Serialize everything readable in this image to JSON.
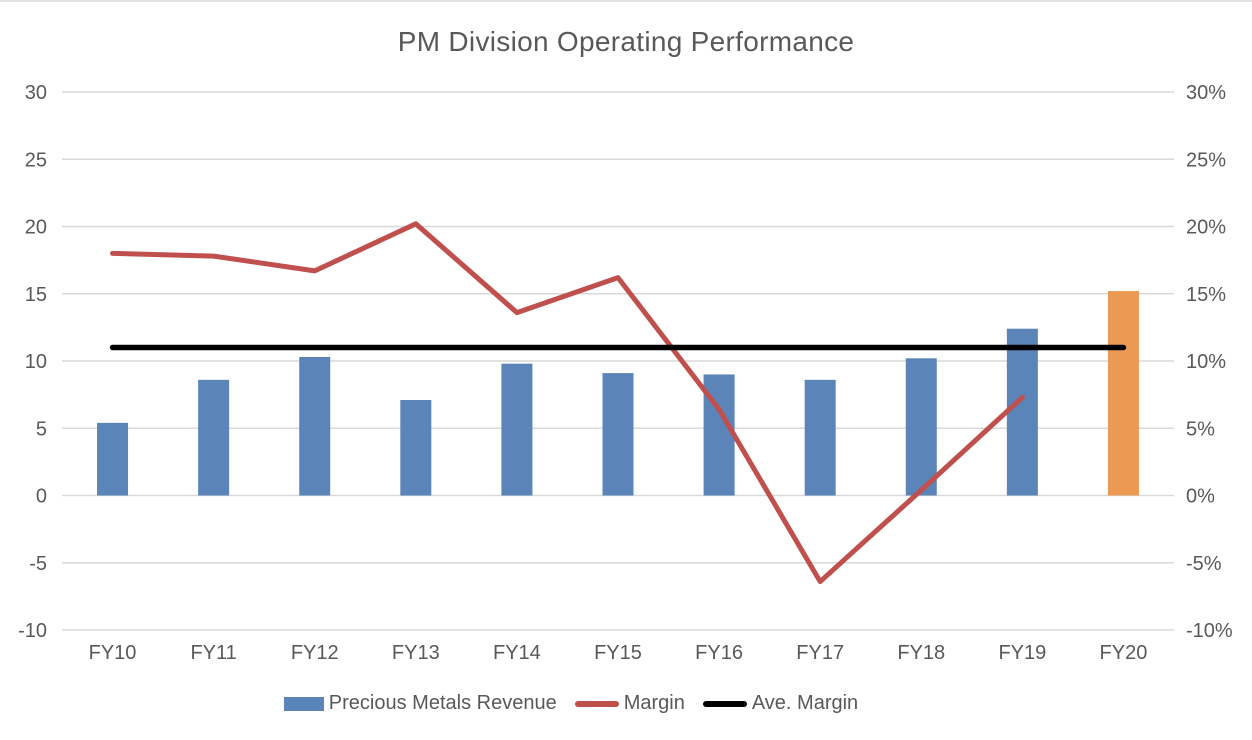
{
  "title": "PM Division Operating Performance",
  "colors": {
    "background": "#FFFFFF",
    "revenue_bar": "#5B84B8",
    "highlight_bar": "#EC9A53",
    "margin_line": "#C0504D",
    "avg_margin_line": "#000000",
    "gridline": "#D9D9D9",
    "axis_text": "#595959",
    "title_text": "#595959"
  },
  "legend": [
    {
      "label": "Precious Metals Revenue",
      "swatch": "bar",
      "color": "#5B84B8"
    },
    {
      "label": "Margin",
      "swatch": "line",
      "color": "#C0504D"
    },
    {
      "label": "Ave. Margin",
      "swatch": "line",
      "color": "#000000"
    }
  ],
  "chart_data": {
    "type": "bar",
    "subtype": "combo-bar-line-dual-axis",
    "title": "PM Division Operating Performance",
    "xlabel": "",
    "ylabel": "",
    "grid": true,
    "legend_position": "bottom",
    "categories": [
      "FY10",
      "FY11",
      "FY12",
      "FY13",
      "FY14",
      "FY15",
      "FY16",
      "FY17",
      "FY18",
      "FY19",
      "FY20"
    ],
    "series": [
      {
        "name": "Precious Metals Revenue",
        "type": "bar",
        "axis": "left",
        "color": "#5B84B8",
        "highlight": {
          "index": 10,
          "color": "#EC9A53"
        },
        "values": [
          5.4,
          8.6,
          10.3,
          7.1,
          9.8,
          9.1,
          9.0,
          8.6,
          10.2,
          12.4,
          15.2
        ]
      },
      {
        "name": "Margin",
        "type": "line",
        "axis": "right",
        "unit": "%",
        "color": "#C0504D",
        "values": [
          18.0,
          17.8,
          16.7,
          20.2,
          13.6,
          16.2,
          6.4,
          -6.4,
          0.4,
          7.3,
          null
        ]
      },
      {
        "name": "Ave. Margin",
        "type": "line",
        "axis": "right",
        "unit": "%",
        "color": "#000000",
        "value": 11.0,
        "span": [
          "FY10",
          "FY20"
        ]
      }
    ],
    "left_axis": {
      "min": -10,
      "max": 30,
      "step": 5,
      "tick_labels": [
        "30",
        "25",
        "20",
        "15",
        "10",
        "5",
        "0",
        "-5",
        "-10"
      ]
    },
    "right_axis": {
      "min": -10,
      "max": 30,
      "step": 5,
      "tick_labels": [
        "30%",
        "25%",
        "20%",
        "15%",
        "10%",
        "5%",
        "0%",
        "-5%",
        "-10%"
      ]
    }
  }
}
